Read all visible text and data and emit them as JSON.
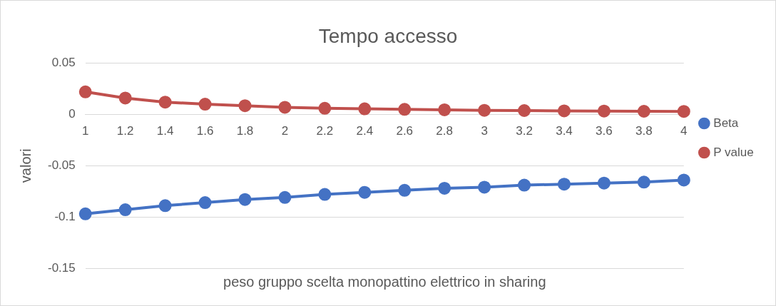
{
  "chart_data": {
    "type": "line",
    "title": "Tempo accesso",
    "xlabel": "peso gruppo scelta monopattino elettrico in sharing",
    "ylabel": "valori",
    "categories": [
      "1",
      "1.2",
      "1.4",
      "1.6",
      "1.8",
      "2",
      "2.2",
      "2.4",
      "2.6",
      "2.8",
      "3",
      "3.2",
      "3.4",
      "3.6",
      "3.8",
      "4"
    ],
    "series": [
      {
        "name": "Beta",
        "color": "#4472c4",
        "values": [
          -0.097,
          -0.093,
          -0.089,
          -0.086,
          -0.083,
          -0.081,
          -0.078,
          -0.076,
          -0.074,
          -0.072,
          -0.071,
          -0.069,
          -0.068,
          -0.067,
          -0.066,
          -0.064
        ]
      },
      {
        "name": "P value",
        "color": "#c0504d",
        "values": [
          0.022,
          0.016,
          0.012,
          0.01,
          0.0085,
          0.007,
          0.006,
          0.0055,
          0.005,
          0.0045,
          0.004,
          0.0038,
          0.0035,
          0.0033,
          0.0031,
          0.003
        ]
      }
    ],
    "ylim": [
      -0.15,
      0.05
    ],
    "yticks": [
      -0.15,
      -0.1,
      -0.05,
      0,
      0.05
    ],
    "grid": "y",
    "legend": "right",
    "marker": "circle",
    "line_style": "solid"
  }
}
